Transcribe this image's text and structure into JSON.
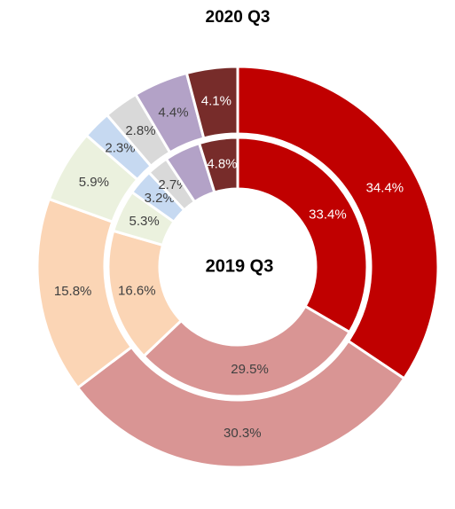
{
  "chart_data": {
    "type": "donut",
    "title": "2020 Q3",
    "center_label": "2019 Q3",
    "colors": [
      "#c00000",
      "#d99594",
      "#fbd5b5",
      "#ebf1de",
      "#c6d9f1",
      "#d9d9d9",
      "#b3a2c7",
      "#772c2a"
    ],
    "series": [
      {
        "values": [
          34.4,
          30.3,
          15.8,
          5.9,
          2.3,
          2.8,
          4.4,
          4.1
        ],
        "value_labels": [
          "34.4%",
          "30.3%",
          "15.8%",
          "5.9%",
          "2.3%",
          "2.8%",
          "4.4%",
          "4.1%"
        ]
      },
      {
        "values": [
          33.4,
          29.5,
          16.6,
          5.3,
          3.2,
          2.7,
          4.5,
          4.8
        ],
        "value_labels": [
          "33.4%",
          "29.5%",
          "16.6%",
          "5.3%",
          "3.2%",
          "2.7%",
          null,
          "4.8%"
        ]
      }
    ]
  }
}
